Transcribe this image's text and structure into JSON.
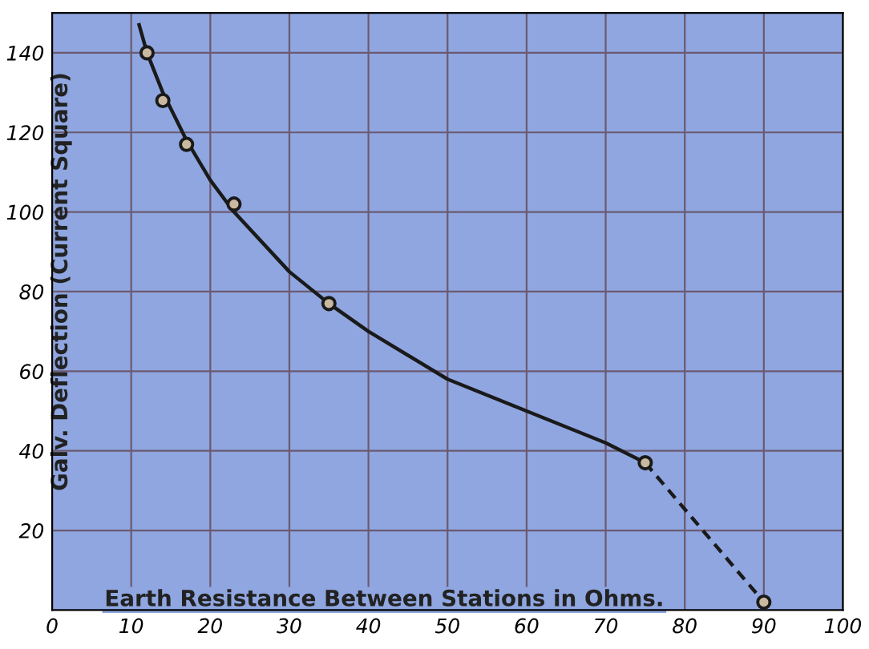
{
  "chart_data": {
    "type": "line",
    "xlabel": "Earth Resistance Between Stations in Ohms.",
    "ylabel": "Galv. Deflection (Current Square)",
    "xlim": [
      0,
      100
    ],
    "ylim": [
      0,
      150
    ],
    "xticks": [
      0,
      10,
      20,
      30,
      40,
      50,
      60,
      70,
      80,
      90,
      100
    ],
    "yticks": [
      20,
      40,
      60,
      80,
      100,
      120,
      140
    ],
    "grid": true,
    "legend": false,
    "series": [
      {
        "color": "#1a1a1a",
        "line_style": "solid",
        "marker": "none",
        "x": [
          11,
          12,
          14,
          17,
          20,
          23,
          30,
          35,
          40,
          50,
          60,
          70,
          75
        ],
        "values": [
          147,
          140,
          130,
          118,
          108,
          100,
          85,
          77,
          70,
          58,
          50,
          42,
          37
        ]
      },
      {
        "color": "#1a1a1a",
        "line_style": "dashed",
        "marker": "none",
        "x": [
          75,
          90
        ],
        "values": [
          37,
          2
        ]
      },
      {
        "type": "scatter",
        "color": "#1a1a1a",
        "marker": "circle",
        "x": [
          12,
          14,
          17,
          23,
          35,
          75,
          90
        ],
        "values": [
          140,
          128,
          117,
          102,
          77,
          37,
          2
        ]
      }
    ]
  }
}
